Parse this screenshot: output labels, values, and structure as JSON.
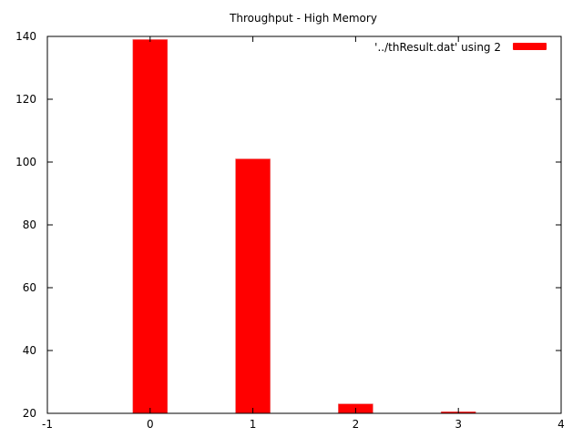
{
  "chart_data": {
    "type": "bar",
    "title": "Throughput - High Memory",
    "xlabel": "",
    "ylabel": "",
    "xlim": [
      -1,
      4
    ],
    "ylim": [
      20,
      140
    ],
    "x_ticks": [
      "-1",
      "0",
      "1",
      "2",
      "3",
      "4"
    ],
    "y_ticks": [
      "20",
      "40",
      "60",
      "80",
      "100",
      "120",
      "140"
    ],
    "series": [
      {
        "name": "'../thResult.dat' using 2",
        "color": "#ff0000",
        "x": [
          0,
          1,
          2,
          3
        ],
        "values": [
          139,
          101,
          23,
          20.5
        ]
      }
    ],
    "legend_position": "top-right",
    "grid": false
  }
}
